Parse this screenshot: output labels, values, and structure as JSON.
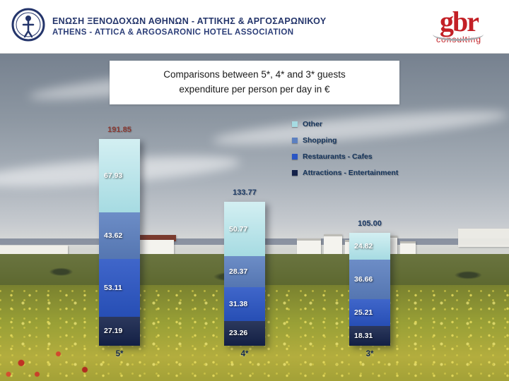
{
  "header": {
    "logo": "athens-hotel-association-emblem",
    "name_greek": "ΕΝΩΣΗ ΞΕΝΟΔΟΧΩΝ ΑΘΗΝΩΝ - ΑΤΤΙΚΗΣ & ΑΡΓΟΣΑΡΩΝΙΚΟΥ",
    "name_english": "ATHENS - ATTICA & ARGOSARONIC HOTEL ASSOCIATION",
    "text_color": "#24356b",
    "gbr": {
      "name": "gbr",
      "subtitle": "consulting",
      "color": "#c32026"
    }
  },
  "title_lines": [
    "Comparisons between 5*, 4* and 3* guests",
    "expenditure per person per day in €"
  ],
  "chart_data": {
    "type": "bar",
    "stacked": true,
    "title": "Comparisons between 5*, 4* and 3* guests expenditure per person per day in €",
    "categories": [
      "5*",
      "4*",
      "3*"
    ],
    "totals": [
      191.85,
      133.77,
      105.0
    ],
    "series": [
      {
        "name": "Attractions - Entertainment",
        "color": "#14224a",
        "values": [
          27.19,
          23.26,
          18.31
        ]
      },
      {
        "name": "Restaurants - Cafes",
        "color": "#2a55c4",
        "values": [
          53.11,
          31.38,
          25.21
        ]
      },
      {
        "name": "Shopping",
        "color": "#5c80c0",
        "values": [
          43.62,
          28.37,
          36.66
        ]
      },
      {
        "name": "Other",
        "color": "#a6dbe2",
        "color_top": "#d3eff2",
        "values": [
          67.93,
          50.77,
          24.82
        ]
      }
    ],
    "legend": [
      "Other",
      "Shopping",
      "Restaurants - Cafes",
      "Attractions - Entertainment"
    ],
    "legend_position": "right",
    "axes_hidden": true,
    "value_label_color": "#ffffff",
    "total_label_colors": [
      "#8a3a33",
      "#1c3a66",
      "#1c3a66"
    ],
    "category_label_color": "#13294e"
  }
}
